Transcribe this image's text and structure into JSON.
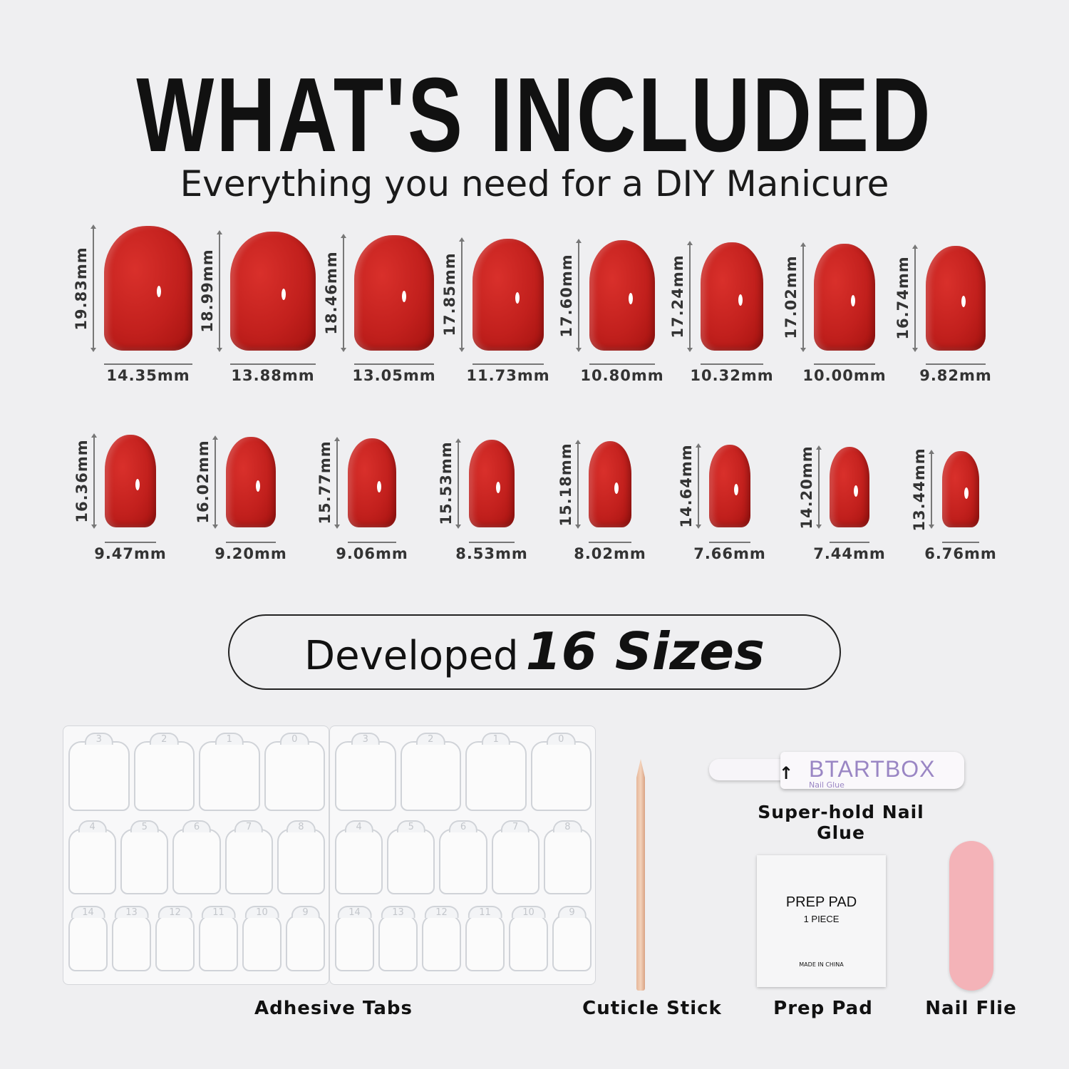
{
  "header": {
    "title": "WHAT'S INCLUDED",
    "subtitle": "Everything you need for a DIY Manicure"
  },
  "nail_color": "#c2201d",
  "nail_rows": [
    [
      {
        "length": "19.83mm",
        "width": "14.35mm",
        "l": 19.83,
        "w": 14.35
      },
      {
        "length": "18.99mm",
        "width": "13.88mm",
        "l": 18.99,
        "w": 13.88
      },
      {
        "length": "18.46mm",
        "width": "13.05mm",
        "l": 18.46,
        "w": 13.05
      },
      {
        "length": "17.85mm",
        "width": "11.73mm",
        "l": 17.85,
        "w": 11.73
      },
      {
        "length": "17.60mm",
        "width": "10.80mm",
        "l": 17.6,
        "w": 10.8
      },
      {
        "length": "17.24mm",
        "width": "10.32mm",
        "l": 17.24,
        "w": 10.32
      },
      {
        "length": "17.02mm",
        "width": "10.00mm",
        "l": 17.02,
        "w": 10.0
      },
      {
        "length": "16.74mm",
        "width": "9.82mm",
        "l": 16.74,
        "w": 9.82
      }
    ],
    [
      {
        "length": "16.36mm",
        "width": "9.47mm",
        "l": 16.36,
        "w": 9.47
      },
      {
        "length": "16.02mm",
        "width": "9.20mm",
        "l": 16.02,
        "w": 9.2
      },
      {
        "length": "15.77mm",
        "width": "9.06mm",
        "l": 15.77,
        "w": 9.06
      },
      {
        "length": "15.53mm",
        "width": "8.53mm",
        "l": 15.53,
        "w": 8.53
      },
      {
        "length": "15.18mm",
        "width": "8.02mm",
        "l": 15.18,
        "w": 8.02
      },
      {
        "length": "14.64mm",
        "width": "7.66mm",
        "l": 14.64,
        "w": 7.66
      },
      {
        "length": "14.20mm",
        "width": "7.44mm",
        "l": 14.2,
        "w": 7.44
      },
      {
        "length": "13.44mm",
        "width": "6.76mm",
        "l": 13.44,
        "w": 6.76
      }
    ]
  ],
  "sizes_banner": {
    "prefix": "Developed",
    "emphasis": "16 Sizes"
  },
  "adhesive_tabs": {
    "label": "Adhesive Tabs",
    "rows": [
      [
        "3",
        "2",
        "1",
        "0"
      ],
      [
        "4",
        "5",
        "6",
        "7",
        "8"
      ],
      [
        "14",
        "13",
        "12",
        "11",
        "10",
        "9"
      ]
    ]
  },
  "items": {
    "cuticle_stick": "Cuticle Stick",
    "glue": "Super-hold Nail Glue",
    "glue_brand": "BTARTBOX",
    "glue_sub": "Nail Glue",
    "prep_pad": "Prep Pad",
    "prep_pad_title": "PREP PAD",
    "prep_pad_qty": "1 PIECE",
    "prep_pad_origin": "MADE IN CHINA",
    "nail_file": "Nail Flie",
    "file_color": "#f4b3b8"
  }
}
